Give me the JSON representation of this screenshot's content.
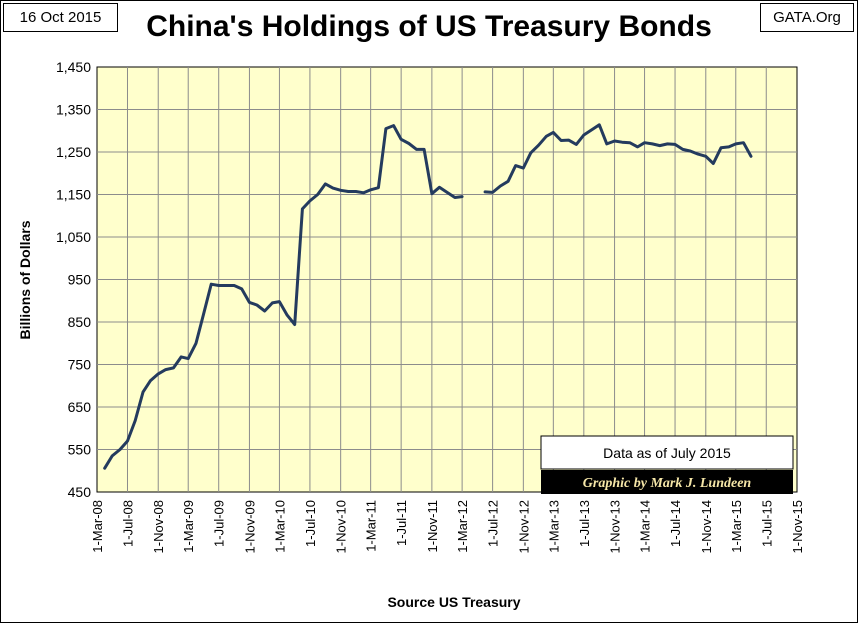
{
  "header": {
    "date": "16 Oct 2015",
    "source_site": "GATA.Org",
    "title": "China's Holdings of US Treasury Bonds"
  },
  "colors": {
    "plot_background": "#ffffcc",
    "line": "#243b5e",
    "grid": "#8c8c8c",
    "credit_background": "#000000",
    "credit_text": "#f5e6a8"
  },
  "chart_data": {
    "type": "line",
    "title": "China's Holdings of US Treasury Bonds",
    "xlabel": "Source US Treasury",
    "ylabel": "Billions  of  Dollars",
    "ylim": [
      450,
      1450
    ],
    "yticks": [
      "450",
      "550",
      "650",
      "750",
      "850",
      "950",
      "1,050",
      "1,150",
      "1,250",
      "1,350",
      "1,450"
    ],
    "xlim": [
      "2008-03-01",
      "2015-11-01"
    ],
    "xticks": [
      "1-Mar-08",
      "1-Jul-08",
      "1-Nov-08",
      "1-Mar-09",
      "1-Jul-09",
      "1-Nov-09",
      "1-Mar-10",
      "1-Jul-10",
      "1-Nov-10",
      "1-Mar-11",
      "1-Jul-11",
      "1-Nov-11",
      "1-Mar-12",
      "1-Jul-12",
      "1-Nov-12",
      "1-Mar-13",
      "1-Jul-13",
      "1-Nov-13",
      "1-Mar-14",
      "1-Jul-14",
      "1-Nov-14",
      "1-Mar-15",
      "1-Jul-15",
      "1-Nov-15"
    ],
    "grid": true,
    "annotations": {
      "data_note": "Data as of July 2015",
      "credit": "Graphic by Mark J. Lundeen"
    },
    "series": [
      {
        "segments": [
          [
            [
              "2008-04-01",
              506
            ],
            [
              "2008-05-01",
              535
            ],
            [
              "2008-06-01",
              550
            ],
            [
              "2008-07-01",
              570
            ],
            [
              "2008-08-01",
              618
            ],
            [
              "2008-09-01",
              685
            ],
            [
              "2008-10-01",
              712
            ],
            [
              "2008-11-01",
              728
            ],
            [
              "2008-12-01",
              738
            ],
            [
              "2009-01-01",
              742
            ],
            [
              "2009-02-01",
              768
            ],
            [
              "2009-03-01",
              764
            ],
            [
              "2009-04-01",
              800
            ],
            [
              "2009-05-01",
              868
            ],
            [
              "2009-06-01",
              939
            ],
            [
              "2009-07-01",
              936
            ],
            [
              "2009-08-01",
              936
            ],
            [
              "2009-09-01",
              936
            ],
            [
              "2009-10-01",
              928
            ],
            [
              "2009-11-01",
              896
            ],
            [
              "2009-12-01",
              890
            ],
            [
              "2010-01-01",
              876
            ],
            [
              "2010-02-01",
              895
            ],
            [
              "2010-03-01",
              898
            ],
            [
              "2010-04-01",
              866
            ],
            [
              "2010-05-01",
              844
            ],
            [
              "2010-06-01",
              1116
            ],
            [
              "2010-07-01",
              1135
            ],
            [
              "2010-08-01",
              1150
            ],
            [
              "2010-09-01",
              1175
            ],
            [
              "2010-10-01",
              1165
            ],
            [
              "2010-11-01",
              1160
            ],
            [
              "2010-12-01",
              1157
            ],
            [
              "2011-01-01",
              1157
            ],
            [
              "2011-02-01",
              1154
            ],
            [
              "2011-03-01",
              1161
            ],
            [
              "2011-04-01",
              1166
            ],
            [
              "2011-05-01",
              1305
            ],
            [
              "2011-06-01",
              1312
            ],
            [
              "2011-07-01",
              1280
            ],
            [
              "2011-08-01",
              1270
            ],
            [
              "2011-09-01",
              1256
            ],
            [
              "2011-10-01",
              1256
            ],
            [
              "2011-11-01",
              1152
            ],
            [
              "2011-12-01",
              1167
            ],
            [
              "2012-01-01",
              1155
            ],
            [
              "2012-02-01",
              1143
            ],
            [
              "2012-03-01",
              1145
            ]
          ],
          [
            [
              "2012-06-01",
              1156
            ],
            [
              "2012-07-01",
              1155
            ],
            [
              "2012-08-01",
              1170
            ],
            [
              "2012-09-01",
              1181
            ],
            [
              "2012-10-01",
              1218
            ],
            [
              "2012-11-01",
              1212
            ],
            [
              "2012-12-01",
              1248
            ],
            [
              "2013-01-01",
              1266
            ],
            [
              "2013-02-01",
              1287
            ],
            [
              "2013-03-01",
              1296
            ],
            [
              "2013-04-01",
              1277
            ],
            [
              "2013-05-01",
              1278
            ],
            [
              "2013-06-01",
              1268
            ],
            [
              "2013-07-01",
              1290
            ],
            [
              "2013-08-01",
              1302
            ],
            [
              "2013-09-01",
              1314
            ],
            [
              "2013-10-01",
              1269
            ],
            [
              "2013-11-01",
              1276
            ],
            [
              "2013-12-01",
              1273
            ],
            [
              "2014-01-01",
              1272
            ],
            [
              "2014-02-01",
              1262
            ],
            [
              "2014-03-01",
              1272
            ],
            [
              "2014-04-01",
              1269
            ],
            [
              "2014-05-01",
              1265
            ],
            [
              "2014-06-01",
              1269
            ],
            [
              "2014-07-01",
              1268
            ],
            [
              "2014-08-01",
              1256
            ],
            [
              "2014-09-01",
              1252
            ],
            [
              "2014-10-01",
              1245
            ],
            [
              "2014-11-01",
              1240
            ],
            [
              "2014-12-01",
              1223
            ],
            [
              "2015-01-01",
              1260
            ],
            [
              "2015-02-01",
              1262
            ],
            [
              "2015-03-01",
              1269
            ],
            [
              "2015-04-01",
              1272
            ],
            [
              "2015-05-01",
              1240
            ]
          ]
        ]
      }
    ]
  }
}
